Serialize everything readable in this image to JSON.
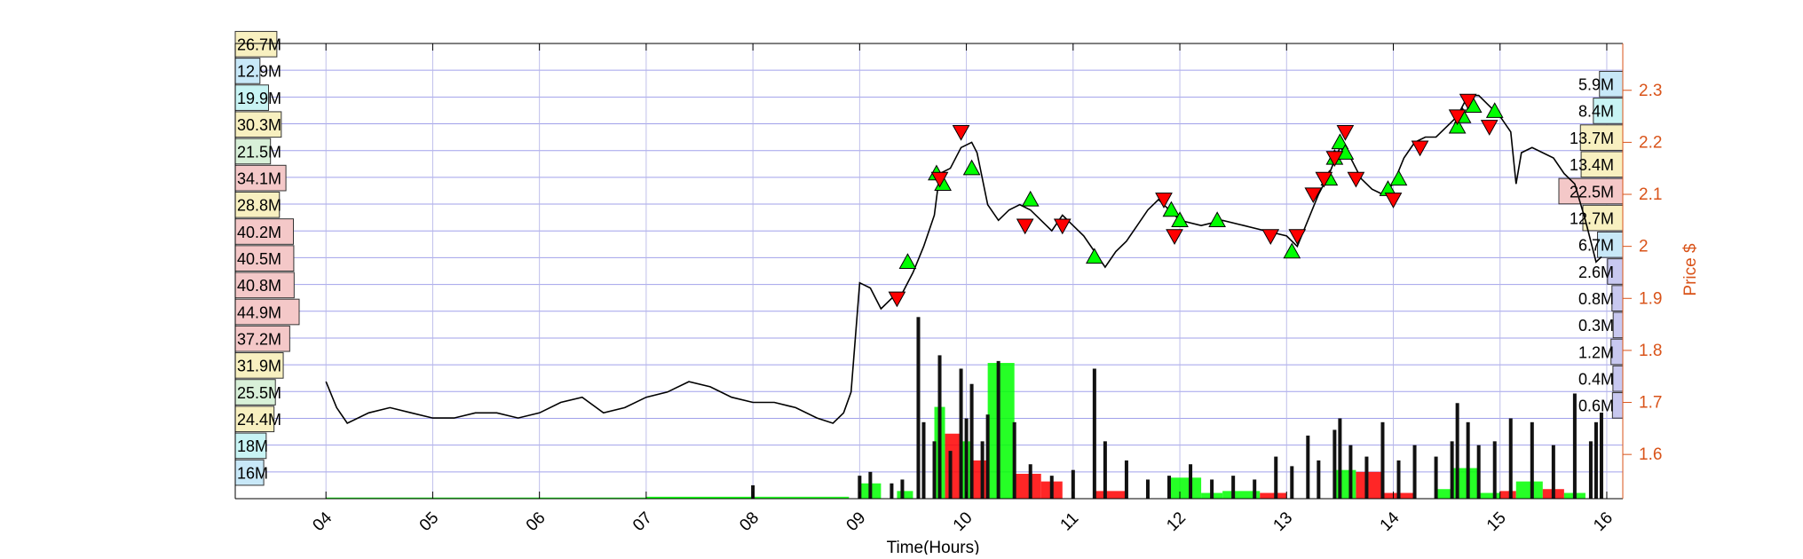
{
  "colors": {
    "grid": "#8a8ae6",
    "axis": "#000000",
    "right_axis": "#d95319",
    "price_line": "#000000",
    "up_marker": "#00ff00",
    "down_marker": "#ff0000",
    "volume_up": "#00ff00",
    "volume_down": "#ff0000",
    "profile_blue": "#c8e8f8",
    "profile_cyan": "#c8f4f4",
    "profile_green": "#d8f0d8",
    "profile_yellow": "#f8f0c0",
    "profile_red": "#f4c8c8",
    "profile_purple": "#c8c8f0"
  },
  "chart_data": {
    "type": "line",
    "xlabel": "Time(Hours)",
    "ylabel_right": "Price $",
    "xlim": [
      3.15,
      16.15
    ],
    "ylim": [
      1.515,
      2.39
    ],
    "x_ticks": [
      "04",
      "05",
      "06",
      "07",
      "08",
      "09",
      "10",
      "11",
      "12",
      "13",
      "14",
      "15",
      "16"
    ],
    "y_ticks": [
      "1.6",
      "1.7",
      "1.8",
      "1.9",
      "2",
      "2.1",
      "2.2",
      "2.3"
    ],
    "grid": true,
    "price_series": [
      [
        4.0,
        1.74
      ],
      [
        4.1,
        1.69
      ],
      [
        4.2,
        1.66
      ],
      [
        4.4,
        1.68
      ],
      [
        4.6,
        1.69
      ],
      [
        4.8,
        1.68
      ],
      [
        5.0,
        1.67
      ],
      [
        5.2,
        1.67
      ],
      [
        5.4,
        1.68
      ],
      [
        5.6,
        1.68
      ],
      [
        5.8,
        1.67
      ],
      [
        6.0,
        1.68
      ],
      [
        6.2,
        1.7
      ],
      [
        6.4,
        1.71
      ],
      [
        6.6,
        1.68
      ],
      [
        6.8,
        1.69
      ],
      [
        7.0,
        1.71
      ],
      [
        7.2,
        1.72
      ],
      [
        7.4,
        1.74
      ],
      [
        7.6,
        1.73
      ],
      [
        7.8,
        1.71
      ],
      [
        8.0,
        1.7
      ],
      [
        8.2,
        1.7
      ],
      [
        8.4,
        1.69
      ],
      [
        8.6,
        1.67
      ],
      [
        8.75,
        1.66
      ],
      [
        8.85,
        1.68
      ],
      [
        8.92,
        1.72
      ],
      [
        9.0,
        1.93
      ],
      [
        9.1,
        1.92
      ],
      [
        9.2,
        1.88
      ],
      [
        9.3,
        1.9
      ],
      [
        9.4,
        1.91
      ],
      [
        9.5,
        1.95
      ],
      [
        9.6,
        2.0
      ],
      [
        9.7,
        2.06
      ],
      [
        9.75,
        2.14
      ],
      [
        9.85,
        2.15
      ],
      [
        9.95,
        2.19
      ],
      [
        10.05,
        2.2
      ],
      [
        10.1,
        2.18
      ],
      [
        10.2,
        2.08
      ],
      [
        10.3,
        2.05
      ],
      [
        10.4,
        2.07
      ],
      [
        10.5,
        2.08
      ],
      [
        10.6,
        2.07
      ],
      [
        10.7,
        2.05
      ],
      [
        10.8,
        2.03
      ],
      [
        10.9,
        2.06
      ],
      [
        11.0,
        2.04
      ],
      [
        11.1,
        2.02
      ],
      [
        11.2,
        1.99
      ],
      [
        11.3,
        1.96
      ],
      [
        11.4,
        1.99
      ],
      [
        11.5,
        2.01
      ],
      [
        11.6,
        2.04
      ],
      [
        11.7,
        2.07
      ],
      [
        11.8,
        2.09
      ],
      [
        11.9,
        2.07
      ],
      [
        12.0,
        2.05
      ],
      [
        12.2,
        2.04
      ],
      [
        12.4,
        2.05
      ],
      [
        12.6,
        2.04
      ],
      [
        12.8,
        2.03
      ],
      [
        13.0,
        2.02
      ],
      [
        13.1,
        2.0
      ],
      [
        13.2,
        2.05
      ],
      [
        13.3,
        2.1
      ],
      [
        13.4,
        2.14
      ],
      [
        13.5,
        2.19
      ],
      [
        13.6,
        2.17
      ],
      [
        13.7,
        2.13
      ],
      [
        13.8,
        2.11
      ],
      [
        13.9,
        2.1
      ],
      [
        14.0,
        2.12
      ],
      [
        14.1,
        2.17
      ],
      [
        14.2,
        2.2
      ],
      [
        14.3,
        2.21
      ],
      [
        14.4,
        2.21
      ],
      [
        14.5,
        2.23
      ],
      [
        14.6,
        2.25
      ],
      [
        14.7,
        2.29
      ],
      [
        14.8,
        2.29
      ],
      [
        14.9,
        2.27
      ],
      [
        15.0,
        2.25
      ],
      [
        15.1,
        2.22
      ],
      [
        15.15,
        2.12
      ],
      [
        15.2,
        2.18
      ],
      [
        15.3,
        2.19
      ],
      [
        15.5,
        2.17
      ],
      [
        15.6,
        2.14
      ],
      [
        15.7,
        2.12
      ],
      [
        15.8,
        2.05
      ],
      [
        15.9,
        1.97
      ],
      [
        15.95,
        1.98
      ]
    ],
    "buy_markers": [
      [
        9.45,
        1.97
      ],
      [
        9.72,
        2.14
      ],
      [
        9.78,
        2.12
      ],
      [
        10.05,
        2.15
      ],
      [
        10.6,
        2.09
      ],
      [
        11.2,
        1.98
      ],
      [
        11.92,
        2.07
      ],
      [
        12.0,
        2.05
      ],
      [
        12.35,
        2.05
      ],
      [
        13.05,
        1.99
      ],
      [
        13.4,
        2.13
      ],
      [
        13.45,
        2.17
      ],
      [
        13.5,
        2.2
      ],
      [
        13.55,
        2.18
      ],
      [
        13.95,
        2.11
      ],
      [
        14.05,
        2.13
      ],
      [
        14.6,
        2.23
      ],
      [
        14.65,
        2.25
      ],
      [
        14.75,
        2.27
      ],
      [
        14.95,
        2.26
      ]
    ],
    "sell_markers": [
      [
        9.35,
        1.9
      ],
      [
        9.75,
        2.13
      ],
      [
        9.95,
        2.22
      ],
      [
        10.55,
        2.04
      ],
      [
        10.9,
        2.04
      ],
      [
        11.85,
        2.09
      ],
      [
        11.95,
        2.02
      ],
      [
        12.85,
        2.02
      ],
      [
        13.1,
        2.02
      ],
      [
        13.25,
        2.1
      ],
      [
        13.35,
        2.13
      ],
      [
        13.45,
        2.17
      ],
      [
        13.55,
        2.22
      ],
      [
        13.65,
        2.13
      ],
      [
        14.0,
        2.09
      ],
      [
        14.25,
        2.19
      ],
      [
        14.6,
        2.25
      ],
      [
        14.7,
        2.28
      ],
      [
        14.9,
        2.23
      ]
    ],
    "volume_spikes": [
      [
        8.0,
        0.07
      ],
      [
        9.0,
        0.12
      ],
      [
        9.1,
        0.14
      ],
      [
        9.3,
        0.08
      ],
      [
        9.4,
        0.1
      ],
      [
        9.55,
        0.95
      ],
      [
        9.6,
        0.4
      ],
      [
        9.7,
        0.3
      ],
      [
        9.75,
        0.75
      ],
      [
        9.85,
        0.25
      ],
      [
        9.95,
        0.68
      ],
      [
        10.0,
        0.42
      ],
      [
        10.05,
        0.6
      ],
      [
        10.15,
        0.3
      ],
      [
        10.2,
        0.44
      ],
      [
        10.3,
        0.72
      ],
      [
        10.45,
        0.4
      ],
      [
        10.6,
        0.18
      ],
      [
        10.8,
        0.12
      ],
      [
        11.0,
        0.15
      ],
      [
        11.2,
        0.68
      ],
      [
        11.3,
        0.3
      ],
      [
        11.5,
        0.2
      ],
      [
        11.7,
        0.1
      ],
      [
        11.9,
        0.12
      ],
      [
        12.1,
        0.18
      ],
      [
        12.3,
        0.1
      ],
      [
        12.5,
        0.12
      ],
      [
        12.7,
        0.1
      ],
      [
        12.9,
        0.22
      ],
      [
        13.05,
        0.17
      ],
      [
        13.2,
        0.33
      ],
      [
        13.3,
        0.2
      ],
      [
        13.45,
        0.36
      ],
      [
        13.5,
        0.42
      ],
      [
        13.6,
        0.28
      ],
      [
        13.75,
        0.22
      ],
      [
        13.9,
        0.4
      ],
      [
        14.05,
        0.2
      ],
      [
        14.2,
        0.28
      ],
      [
        14.4,
        0.22
      ],
      [
        14.55,
        0.3
      ],
      [
        14.6,
        0.5
      ],
      [
        14.7,
        0.4
      ],
      [
        14.8,
        0.28
      ],
      [
        14.95,
        0.3
      ],
      [
        15.1,
        0.42
      ],
      [
        15.3,
        0.4
      ],
      [
        15.5,
        0.28
      ],
      [
        15.7,
        0.55
      ],
      [
        15.85,
        0.3
      ],
      [
        15.9,
        0.4
      ],
      [
        15.95,
        0.45
      ]
    ],
    "volume_blocks": [
      [
        9.0,
        9.2,
        0.08,
        "up"
      ],
      [
        9.35,
        9.5,
        0.04,
        "up"
      ],
      [
        9.7,
        9.8,
        0.48,
        "up"
      ],
      [
        9.8,
        9.95,
        0.34,
        "down"
      ],
      [
        9.95,
        10.05,
        0.3,
        "up"
      ],
      [
        10.05,
        10.2,
        0.2,
        "down"
      ],
      [
        10.2,
        10.45,
        0.71,
        "up"
      ],
      [
        10.45,
        10.7,
        0.13,
        "down"
      ],
      [
        10.7,
        10.9,
        0.09,
        "down"
      ],
      [
        11.2,
        11.5,
        0.04,
        "down"
      ],
      [
        11.9,
        12.2,
        0.11,
        "up"
      ],
      [
        12.2,
        12.4,
        0.03,
        "up"
      ],
      [
        12.4,
        12.75,
        0.04,
        "up"
      ],
      [
        12.75,
        13.0,
        0.03,
        "down"
      ],
      [
        13.45,
        13.65,
        0.15,
        "up"
      ],
      [
        13.65,
        13.9,
        0.14,
        "down"
      ],
      [
        13.9,
        14.2,
        0.03,
        "down"
      ],
      [
        14.4,
        14.55,
        0.05,
        "up"
      ],
      [
        14.55,
        14.8,
        0.16,
        "up"
      ],
      [
        14.8,
        15.0,
        0.03,
        "up"
      ],
      [
        15.0,
        15.15,
        0.04,
        "down"
      ],
      [
        15.15,
        15.4,
        0.09,
        "up"
      ],
      [
        15.4,
        15.6,
        0.05,
        "down"
      ],
      [
        15.6,
        15.8,
        0.03,
        "up"
      ],
      [
        4.0,
        8.0,
        0.006,
        "up"
      ],
      [
        7.0,
        8.9,
        0.01,
        "up"
      ]
    ],
    "left_profile": [
      {
        "label": "26.7M",
        "value": 26.7,
        "fill": "#f8f0c0"
      },
      {
        "label": "12.9M",
        "value": 12.9,
        "fill": "#c8e8f8"
      },
      {
        "label": "19.9M",
        "value": 19.9,
        "fill": "#c8f4f4"
      },
      {
        "label": "30.3M",
        "value": 30.3,
        "fill": "#f8f0c0"
      },
      {
        "label": "21.5M",
        "value": 21.5,
        "fill": "#d8f0d8"
      },
      {
        "label": "34.1M",
        "value": 34.1,
        "fill": "#f4c8c8"
      },
      {
        "label": "28.8M",
        "value": 28.8,
        "fill": "#f8f0c0"
      },
      {
        "label": "40.2M",
        "value": 40.2,
        "fill": "#f4c8c8"
      },
      {
        "label": "40.5M",
        "value": 40.5,
        "fill": "#f4c8c8"
      },
      {
        "label": "40.8M",
        "value": 40.8,
        "fill": "#f4c8c8"
      },
      {
        "label": "44.9M",
        "value": 44.9,
        "fill": "#f4c8c8"
      },
      {
        "label": "37.2M",
        "value": 37.2,
        "fill": "#f4c8c8"
      },
      {
        "label": "31.9M",
        "value": 31.9,
        "fill": "#f8f0c0"
      },
      {
        "label": "25.5M",
        "value": 25.5,
        "fill": "#d8f0d8"
      },
      {
        "label": "24.4M",
        "value": 24.4,
        "fill": "#f8f0c0"
      },
      {
        "label": "18M",
        "value": 18.0,
        "fill": "#c8f4f4"
      },
      {
        "label": "16M",
        "value": 16.0,
        "fill": "#c8e8f8"
      }
    ],
    "right_profile": [
      {
        "label": "5.9M",
        "value": 5.9,
        "fill": "#c8e8f8"
      },
      {
        "label": "8.4M",
        "value": 8.4,
        "fill": "#c8f4f4"
      },
      {
        "label": "13.7M",
        "value": 13.7,
        "fill": "#f8f0c0"
      },
      {
        "label": "13.4M",
        "value": 13.4,
        "fill": "#f8f0c0"
      },
      {
        "label": "22.5M",
        "value": 22.5,
        "fill": "#f4c8c8"
      },
      {
        "label": "12.7M",
        "value": 12.7,
        "fill": "#f8f0c0"
      },
      {
        "label": "6.7M",
        "value": 6.7,
        "fill": "#c8e8f8"
      },
      {
        "label": "2.6M",
        "value": 2.6,
        "fill": "#c8c8f0"
      },
      {
        "label": "0.8M",
        "value": 0.8,
        "fill": "#c8c8f0"
      },
      {
        "label": "0.3M",
        "value": 0.3,
        "fill": "#c8c8f0"
      },
      {
        "label": "1.2M",
        "value": 1.2,
        "fill": "#c8c8f0"
      },
      {
        "label": "0.4M",
        "value": 0.4,
        "fill": "#c8c8f0"
      },
      {
        "label": "0.6M",
        "value": 0.6,
        "fill": "#c8c8f0"
      }
    ]
  }
}
